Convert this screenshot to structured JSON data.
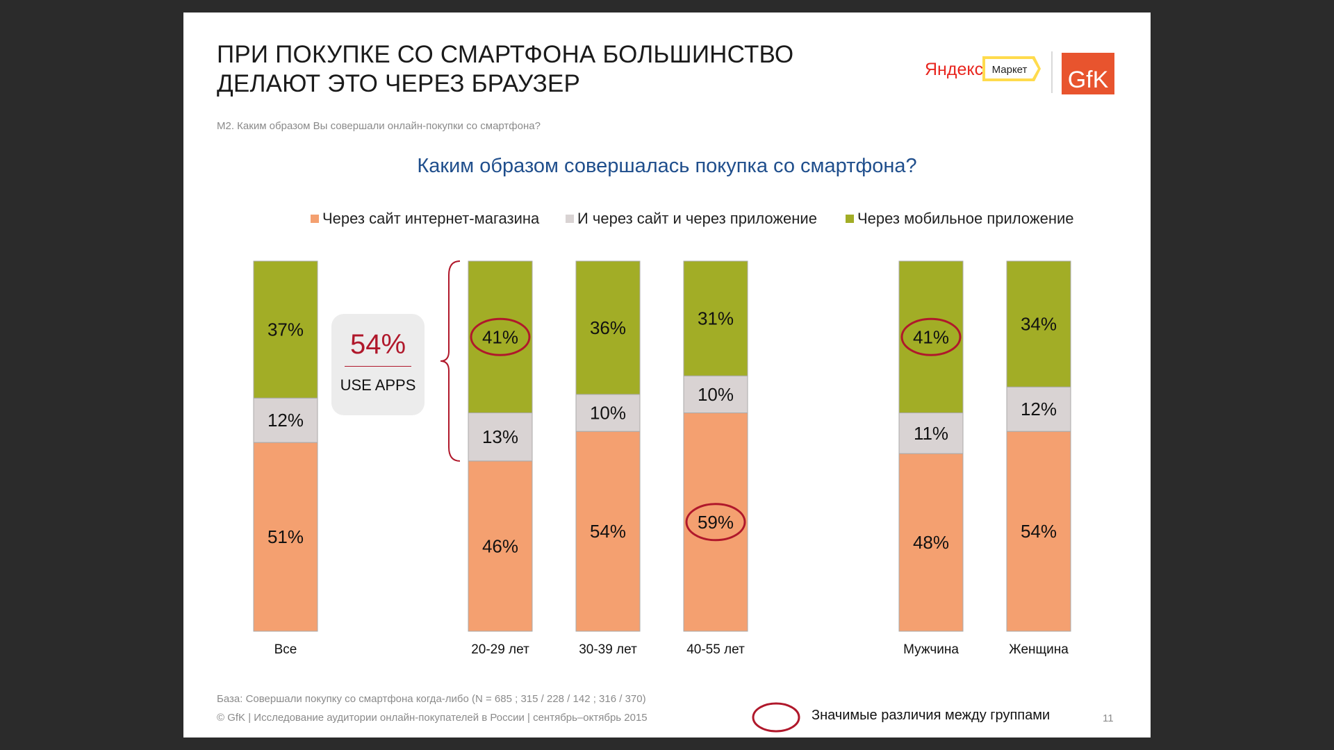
{
  "slide": {
    "title_line1": "ПРИ ПОКУПКЕ СО СМАРТФОНА БОЛЬШИНСТВО",
    "title_line2": "ДЕЛАЮТ ЭТО ЧЕРЕЗ БРАУЗЕР",
    "question": "М2. Каким образом Вы совершали онлайн-покупки со смартфона?",
    "base_note": "База: Совершали покупку со смартфона когда-либо (N = 685 ; 315 / 228 / 142 ; 316 / 370)",
    "copyright": "© GfK | Исследование аудитории онлайн-покупателей в России | сентябрь–октябрь 2015",
    "significance_note": "Значимые различия между группами",
    "page_number": "11"
  },
  "logos": {
    "yandex_text": "Яндекс",
    "market_text": "Маркет",
    "gfk_text": "GfK",
    "yandex_color": "#e8261f",
    "market_badge_color": "#ffdb4d",
    "gfk_color": "#e8542e"
  },
  "callout": {
    "value": "54%",
    "label": "USE APPS"
  },
  "colors": {
    "site": "#f4a070",
    "both": "#d9d3d3",
    "app": "#a2ad26",
    "circle": "#b0182b"
  },
  "chart_data": {
    "type": "bar",
    "stacked": true,
    "title": "Каким образом совершалась покупка со смартфона?",
    "categories": [
      "Все",
      "20-29 лет",
      "30-39 лет",
      "40-55 лет",
      "Мужчина",
      "Женщина"
    ],
    "series": [
      {
        "name": "Через сайт интернет-магазина",
        "values": [
          51,
          46,
          54,
          59,
          48,
          54
        ]
      },
      {
        "name": "И через сайт и через приложение",
        "values": [
          12,
          13,
          10,
          10,
          11,
          12
        ]
      },
      {
        "name": "Через мобильное приложение",
        "values": [
          37,
          41,
          36,
          31,
          41,
          34
        ]
      }
    ],
    "value_format": "%",
    "ylim": [
      0,
      100
    ],
    "legend": "top-right",
    "grid": false,
    "highlighted": [
      {
        "category": "20-29 лет",
        "series": "Через мобильное приложение"
      },
      {
        "category": "40-55 лет",
        "series": "Через сайт интернет-магазина"
      },
      {
        "category": "Мужчина",
        "series": "Через мобильное приложение"
      }
    ]
  }
}
